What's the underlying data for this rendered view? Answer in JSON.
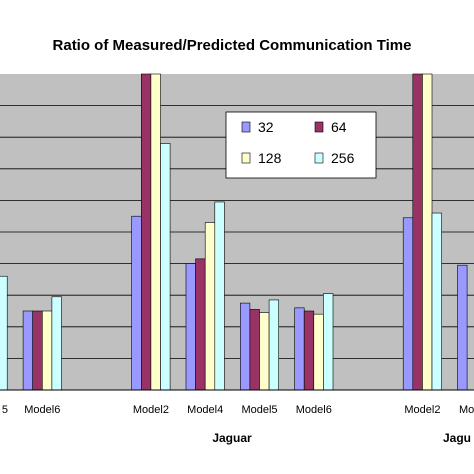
{
  "chart_data": {
    "type": "bar",
    "title": "Ratio of Measured/Predicted Communication Time",
    "xlabel": "",
    "ylabel": "",
    "ylim": [
      0,
      10
    ],
    "grid": true,
    "legend_position": "top-right",
    "categories": [
      {
        "label": "5",
        "group": ""
      },
      {
        "label": "Model6",
        "group": ""
      },
      {
        "label": "",
        "group": ""
      },
      {
        "label": "Model2",
        "group": "Jaguar"
      },
      {
        "label": "Model4",
        "group": "Jaguar"
      },
      {
        "label": "Model5",
        "group": "Jaguar"
      },
      {
        "label": "Model6",
        "group": "Jaguar"
      },
      {
        "label": "",
        "group": ""
      },
      {
        "label": "Model2",
        "group": "Jagu"
      },
      {
        "label": "Mod",
        "group": "Jagu"
      }
    ],
    "group_labels": [
      "Jaguar",
      "Jagu"
    ],
    "series": [
      {
        "name": "32",
        "color": "#9999ff",
        "values": [
          null,
          2.5,
          null,
          5.5,
          4.0,
          2.75,
          2.6,
          null,
          5.45,
          null
        ]
      },
      {
        "name": "64",
        "color": "#993366",
        "values": [
          null,
          2.5,
          null,
          10.5,
          4.15,
          2.55,
          2.5,
          null,
          10.5,
          null
        ]
      },
      {
        "name": "128",
        "color": "#ffffcc",
        "values": [
          null,
          2.5,
          null,
          10.5,
          5.3,
          2.45,
          2.4,
          null,
          10.5,
          null
        ]
      },
      {
        "name": "256",
        "color": "#ccffff",
        "values": [
          3.6,
          2.95,
          null,
          7.8,
          5.95,
          2.85,
          3.05,
          null,
          5.6,
          null
        ]
      }
    ],
    "partial_values": [
      {
        "category": 9,
        "series": 0,
        "value": 3.95
      }
    ]
  }
}
